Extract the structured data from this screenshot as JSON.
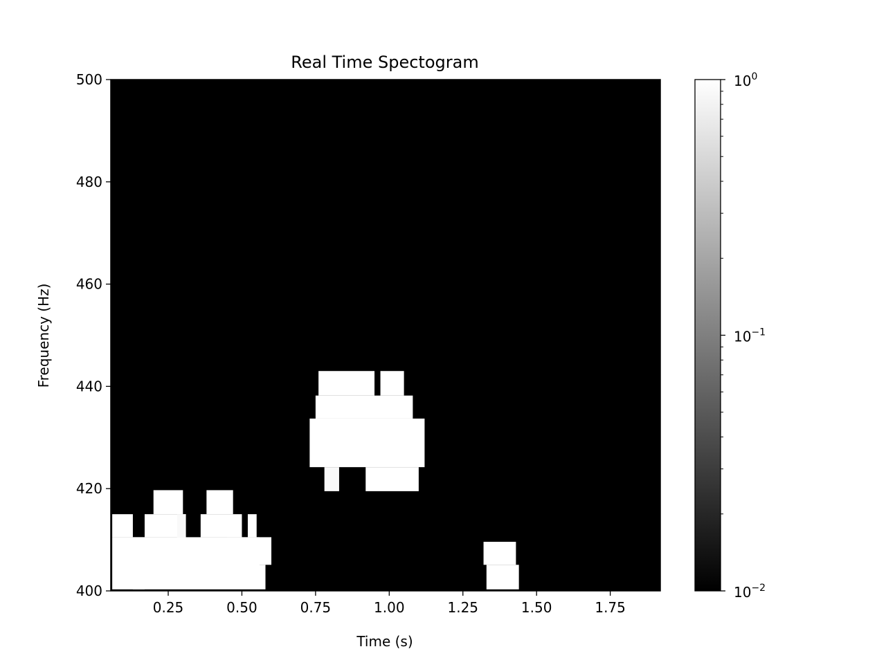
{
  "chart_data": {
    "type": "heatmap",
    "title": "Real Time Spectogram",
    "xlabel": "Time (s)",
    "ylabel": "Frequency (Hz)",
    "xlim": [
      0.055,
      1.92
    ],
    "ylim": [
      400,
      500
    ],
    "xticks": [
      0.25,
      0.5,
      0.75,
      1.0,
      1.25,
      1.5,
      1.75
    ],
    "xtick_labels": [
      "0.25",
      "0.50",
      "0.75",
      "1.00",
      "1.25",
      "1.50",
      "1.75"
    ],
    "yticks": [
      400,
      420,
      440,
      460,
      480,
      500
    ],
    "ytick_labels": [
      "400",
      "420",
      "440",
      "460",
      "480",
      "500"
    ],
    "colormap": "gray",
    "background_color": "#000000",
    "colorbar": {
      "scale": "log",
      "min": 0.01,
      "max": 1,
      "ticks": [
        {
          "value": 0.01,
          "base": "10",
          "exp": "−2"
        },
        {
          "value": 0.1,
          "base": "10",
          "exp": "−1"
        },
        {
          "value": 1,
          "base": "10",
          "exp": "0"
        }
      ]
    },
    "cells": [
      {
        "t0": 0.06,
        "t1": 0.13,
        "f0": 410.5,
        "f1": 415.0,
        "v": 1
      },
      {
        "t0": 0.06,
        "t1": 0.56,
        "f0": 400.3,
        "f1": 410.5,
        "v": 1
      },
      {
        "t0": 0.13,
        "t1": 0.17,
        "f0": 400.3,
        "f1": 410.5,
        "v": 1
      },
      {
        "t0": 0.17,
        "t1": 0.31,
        "f0": 410.5,
        "f1": 415.0,
        "v": 1
      },
      {
        "t0": 0.2,
        "t1": 0.3,
        "f0": 415.0,
        "f1": 419.7,
        "v": 1
      },
      {
        "t0": 0.28,
        "t1": 0.31,
        "f0": 410.5,
        "f1": 415.0,
        "v": 0.9
      },
      {
        "t0": 0.36,
        "t1": 0.5,
        "f0": 410.5,
        "f1": 415.0,
        "v": 1
      },
      {
        "t0": 0.38,
        "t1": 0.47,
        "f0": 415.0,
        "f1": 419.7,
        "v": 1
      },
      {
        "t0": 0.52,
        "t1": 0.55,
        "f0": 410.5,
        "f1": 415.0,
        "v": 1
      },
      {
        "t0": 0.45,
        "t1": 0.6,
        "f0": 405.1,
        "f1": 410.5,
        "v": 1
      },
      {
        "t0": 0.56,
        "t1": 0.58,
        "f0": 400.3,
        "f1": 405.1,
        "v": 1
      },
      {
        "t0": 0.73,
        "t1": 1.12,
        "f0": 424.2,
        "f1": 433.7,
        "v": 1
      },
      {
        "t0": 0.75,
        "t1": 1.08,
        "f0": 433.7,
        "f1": 438.2,
        "v": 1
      },
      {
        "t0": 0.76,
        "t1": 0.95,
        "f0": 438.2,
        "f1": 443.0,
        "v": 1
      },
      {
        "t0": 0.97,
        "t1": 1.05,
        "f0": 438.2,
        "f1": 443.0,
        "v": 1
      },
      {
        "t0": 0.78,
        "t1": 0.83,
        "f0": 419.5,
        "f1": 424.2,
        "v": 0.9
      },
      {
        "t0": 0.92,
        "t1": 1.1,
        "f0": 419.5,
        "f1": 424.2,
        "v": 1
      },
      {
        "t0": 1.32,
        "t1": 1.43,
        "f0": 405.1,
        "f1": 409.6,
        "v": 1
      },
      {
        "t0": 1.33,
        "t1": 1.44,
        "f0": 400.3,
        "f1": 405.1,
        "v": 1
      }
    ]
  }
}
